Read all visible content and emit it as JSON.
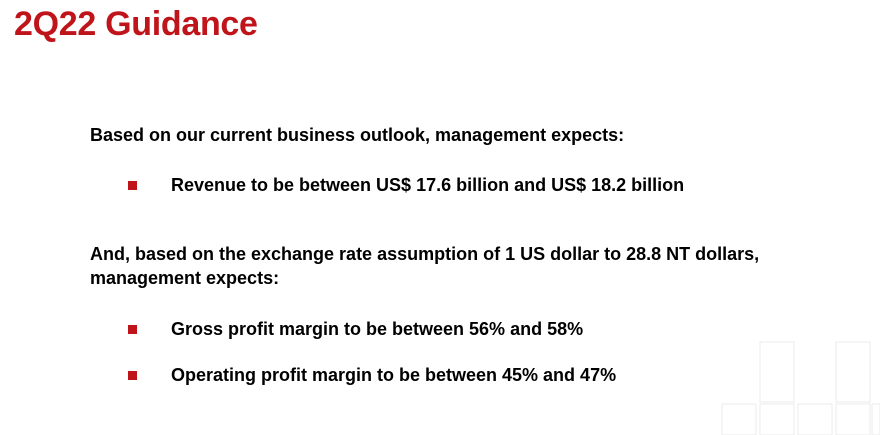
{
  "slide": {
    "title": "2Q22 Guidance",
    "intro": "Based on our current business outlook, management expects:",
    "bullets_revenue": [
      "Revenue to be between US$ 17.6 billion and US$ 18.2 billion"
    ],
    "exchange_paragraph": "And, based on the exchange rate assumption of 1 US dollar to 28.8 NT dollars, management expects:",
    "bullets_margins": [
      "Gross profit margin to be between 56% and 58%",
      "Operating profit margin to be between 45% and 47%"
    ]
  },
  "colors": {
    "title": "#C0141B",
    "bullet": "#C0141B",
    "text": "#000000",
    "grid_lines": "#E6E6E6"
  },
  "icons": {
    "bullet": "square-bullet-icon"
  }
}
